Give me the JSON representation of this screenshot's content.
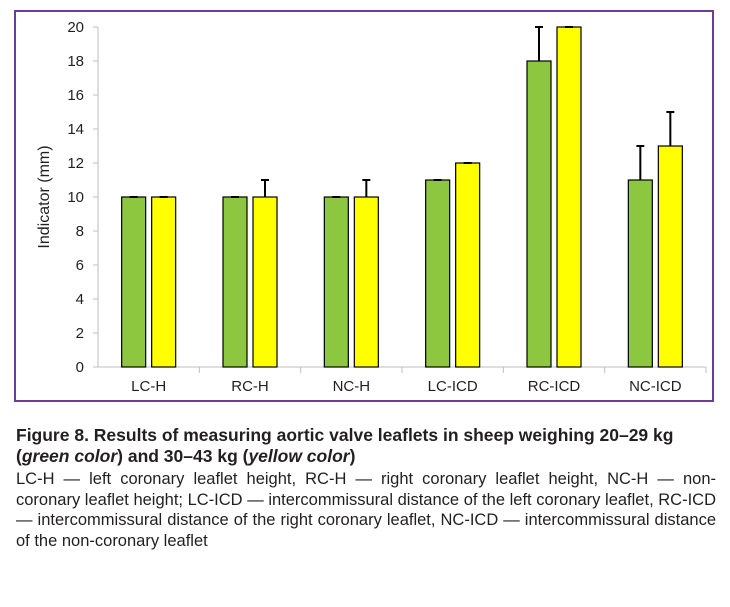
{
  "chart_data": {
    "type": "bar",
    "ylabel": "Indicator (mm)",
    "xlabel": "",
    "ylim": [
      0,
      20
    ],
    "yticks": [
      0,
      2,
      4,
      6,
      8,
      10,
      12,
      14,
      16,
      18,
      20
    ],
    "categories": [
      "LC-H",
      "RC-H",
      "NC-H",
      "LC-ICD",
      "RC-ICD",
      "NC-ICD"
    ],
    "series": [
      {
        "color": "#8dc63f",
        "values": [
          10,
          10,
          10,
          11,
          18,
          11
        ],
        "error": [
          0,
          0,
          0,
          0,
          2,
          2
        ]
      },
      {
        "color": "#ffff00",
        "values": [
          10,
          10,
          10,
          12,
          20,
          13
        ],
        "error": [
          0,
          1,
          1,
          0,
          0,
          2
        ]
      }
    ],
    "grid": false,
    "legend": "none",
    "border_color": "#6b3e93"
  },
  "caption": {
    "title_prefix": "Figure 8. Results of measuring aortic valve leaflets in sheep weighing 20–29 kg (",
    "title_green": "green color",
    "title_mid": ") and 30–43 kg (",
    "title_yellow": "yellow color",
    "title_suffix": ")",
    "body": "LC-H — left coronary leaflet height, RC-H — right coronary leaflet height, NC-H — non-coronary leaflet height; LC-ICD — intercommissural distance of the left coronary leaflet, RC-ICD — intercommissural distance of the right coronary leaflet, NC-ICD — intercommissural distance of the non-coronary leaflet"
  }
}
